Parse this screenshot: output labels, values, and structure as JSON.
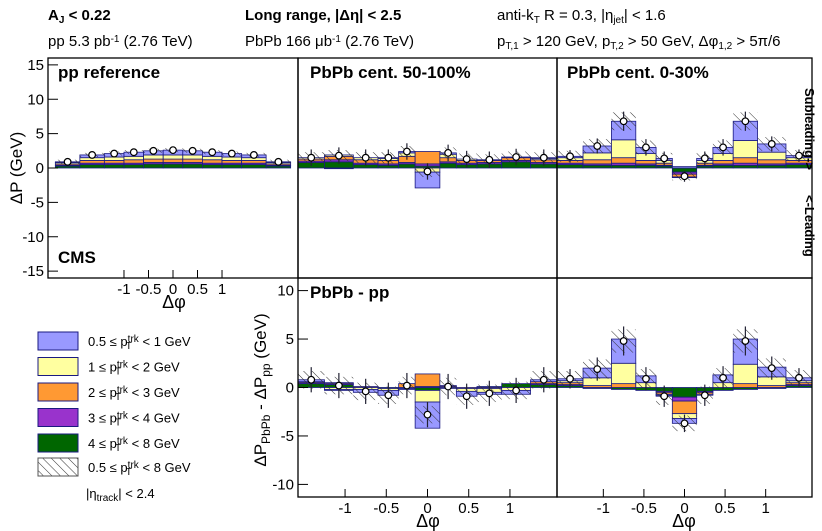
{
  "header": {
    "left1": [
      "A",
      "J",
      " < 0.22"
    ],
    "left2": [
      "pp 5.3 pb",
      "-1",
      " (2.76 TeV)"
    ],
    "mid1": [
      "Long range, |Δη| < 2.5"
    ],
    "mid2": [
      "PbPb 166 μb",
      "-1",
      " (2.76 TeV)"
    ],
    "right1": [
      "anti-k",
      "T",
      " R = 0.3, |η",
      "jet",
      "| < 1.6"
    ],
    "right2": [
      "p",
      "T,1",
      " > 120 GeV, p",
      "T,2",
      " > 50 GeV, Δφ",
      "1,2",
      " > 5π/6"
    ]
  },
  "labels": {
    "cms": "CMS",
    "subleading": "Subleading->",
    "leading": "<-Leading",
    "ylabel_top": "ΔP  (GeV)",
    "ylabel_bottom": [
      "ΔP",
      "PbPb",
      " - ΔP",
      "pp",
      "  (GeV)"
    ],
    "xlabel": "Δφ",
    "syst": [
      "0.5 ≤ p",
      "trk",
      "T",
      " < 8 GeV"
    ],
    "eta_track": [
      "|η",
      "track",
      "| < 2.4"
    ]
  },
  "chart_data": [
    {
      "type": "histogram",
      "stacked": true,
      "title": "pp reference",
      "bins": [
        -2.4,
        -1.9,
        -1.4,
        -1.0,
        -0.6,
        -0.2,
        0.2,
        0.6,
        1.0,
        1.4,
        1.9,
        2.4
      ],
      "xlim": [
        -2.55,
        2.55
      ],
      "ylim": [
        -16,
        16
      ],
      "xticks": [
        -1,
        -0.5,
        0,
        0.5,
        1
      ],
      "yticks": [
        -15,
        -10,
        -5,
        0,
        5,
        10,
        15
      ],
      "series": [
        {
          "name": [
            "0.5 ≤ p",
            "trk",
            "T",
            " < 1 GeV"
          ],
          "color": "#9999ff",
          "values": [
            0.1,
            0.4,
            0.5,
            0.6,
            0.6,
            0.7,
            0.6,
            0.6,
            0.5,
            0.4,
            0.1
          ]
        },
        {
          "name": [
            "1 ≤ p",
            "trk",
            "T",
            " < 2 GeV"
          ],
          "color": "#ffffa0",
          "values": [
            0.2,
            0.4,
            0.5,
            0.5,
            0.6,
            0.6,
            0.6,
            0.5,
            0.5,
            0.4,
            0.2
          ]
        },
        {
          "name": [
            "2 ≤ p",
            "trk",
            "T",
            " < 3 GeV"
          ],
          "color": "#ff9933",
          "values": [
            0.2,
            0.4,
            0.4,
            0.5,
            0.5,
            0.5,
            0.5,
            0.5,
            0.4,
            0.4,
            0.2
          ]
        },
        {
          "name": [
            "3 ≤ p",
            "trk",
            "T",
            " < 4 GeV"
          ],
          "color": "#9933cc",
          "values": [
            0.1,
            0.2,
            0.2,
            0.2,
            0.2,
            0.2,
            0.2,
            0.2,
            0.2,
            0.2,
            0.1
          ]
        },
        {
          "name": [
            "4 ≤ p",
            "trk",
            "T",
            " < 8 GeV"
          ],
          "color": "#006600",
          "values": [
            0.3,
            0.5,
            0.5,
            0.5,
            0.6,
            0.6,
            0.6,
            0.5,
            0.5,
            0.5,
            0.3
          ]
        }
      ],
      "totals": [
        0.9,
        1.9,
        2.1,
        2.3,
        2.5,
        2.6,
        2.5,
        2.3,
        2.1,
        1.9,
        0.9
      ],
      "total_errors": [
        0.3,
        0.3,
        0.3,
        0.3,
        0.3,
        0.3,
        0.3,
        0.3,
        0.3,
        0.3,
        0.3
      ],
      "total_syst": [
        0.3,
        0.3,
        0.3,
        0.3,
        0.3,
        0.3,
        0.3,
        0.3,
        0.3,
        0.3,
        0.3
      ]
    },
    {
      "type": "histogram",
      "stacked": true,
      "title": "PbPb cent. 50-100%",
      "bins": [
        -1.5708,
        -1.25,
        -0.9,
        -0.6,
        -0.35,
        -0.15,
        0.15,
        0.35,
        0.6,
        0.9,
        1.25,
        1.5708
      ],
      "xlim": [
        -1.5708,
        1.5708
      ],
      "ylim": [
        -16,
        16
      ],
      "series": [
        {
          "color": "#9999ff",
          "values": [
            0.0,
            -0.1,
            0.0,
            0.1,
            0.2,
            -2.3,
            0.2,
            0.0,
            0.0,
            0.0,
            0.1
          ]
        },
        {
          "color": "#ffffa0",
          "values": [
            0.2,
            0.2,
            0.3,
            0.3,
            0.5,
            -0.6,
            0.5,
            0.2,
            0.1,
            0.1,
            0.2
          ]
        },
        {
          "color": "#ff9933",
          "values": [
            0.3,
            0.5,
            0.5,
            0.5,
            0.9,
            1.8,
            0.6,
            0.4,
            0.3,
            0.4,
            0.4
          ]
        },
        {
          "color": "#9933cc",
          "values": [
            0.2,
            0.3,
            0.2,
            0.2,
            0.2,
            0.3,
            0.2,
            0.2,
            0.2,
            0.2,
            0.2
          ]
        },
        {
          "color": "#006600",
          "values": [
            0.8,
            0.9,
            0.5,
            0.4,
            0.6,
            0.3,
            0.7,
            0.5,
            0.6,
            0.9,
            0.6
          ]
        }
      ],
      "totals": [
        1.5,
        1.8,
        1.5,
        1.5,
        2.4,
        -0.5,
        2.2,
        1.3,
        1.2,
        1.6,
        1.5
      ],
      "total_errors": [
        1.2,
        1.2,
        1.2,
        1.2,
        1.2,
        1.2,
        1.2,
        1.2,
        1.2,
        1.2,
        1.2
      ],
      "total_syst": [
        0.8,
        0.8,
        0.8,
        0.8,
        0.8,
        0.8,
        0.8,
        0.8,
        0.8,
        0.8,
        0.8
      ]
    },
    {
      "type": "histogram",
      "stacked": true,
      "title": "PbPb cent. 0-30%",
      "bins": [
        -1.5708,
        -1.25,
        -0.9,
        -0.6,
        -0.35,
        -0.15,
        0.15,
        0.35,
        0.6,
        0.9,
        1.25,
        1.5708
      ],
      "xlim": [
        -1.5708,
        1.5708
      ],
      "ylim": [
        -16,
        16
      ],
      "series": [
        {
          "color": "#9999ff",
          "values": [
            0.2,
            1.0,
            2.7,
            0.9,
            0.3,
            0.2,
            0.3,
            0.9,
            2.8,
            1.2,
            0.3
          ]
        },
        {
          "color": "#ffffa0",
          "values": [
            0.4,
            1.0,
            2.6,
            1.0,
            0.4,
            -0.1,
            0.4,
            1.0,
            2.5,
            1.1,
            0.4
          ]
        },
        {
          "color": "#ff9933",
          "values": [
            0.4,
            0.6,
            0.8,
            0.5,
            0.3,
            -0.4,
            0.3,
            0.5,
            0.8,
            0.6,
            0.4
          ]
        },
        {
          "color": "#9933cc",
          "values": [
            0.2,
            0.2,
            0.3,
            0.2,
            0.1,
            -0.3,
            0.1,
            0.2,
            0.3,
            0.2,
            0.2
          ]
        },
        {
          "color": "#006600",
          "values": [
            0.5,
            0.4,
            0.4,
            0.4,
            0.3,
            -0.6,
            0.3,
            0.4,
            0.4,
            0.4,
            0.5
          ]
        }
      ],
      "totals": [
        1.7,
        3.2,
        6.8,
        3.0,
        1.4,
        -1.2,
        1.4,
        3.0,
        6.8,
        3.5,
        1.8
      ],
      "total_errors": [
        0.9,
        1.1,
        1.4,
        1.2,
        1.0,
        0.8,
        1.0,
        1.2,
        1.4,
        1.1,
        0.9
      ],
      "total_syst": [
        0.8,
        1.0,
        1.3,
        1.0,
        0.8,
        0.6,
        0.8,
        1.0,
        1.3,
        1.0,
        0.8
      ]
    },
    {
      "type": "histogram",
      "stacked": true,
      "title": "PbPb - pp",
      "bins": [
        -1.5708,
        -1.25,
        -0.9,
        -0.6,
        -0.35,
        -0.15,
        0.15,
        0.35,
        0.6,
        0.9,
        1.25,
        1.5708
      ],
      "xlim": [
        -1.5708,
        1.5708
      ],
      "ylim": [
        -11.3,
        11.3
      ],
      "xticks": [
        -1,
        -0.5,
        0,
        0.5,
        1
      ],
      "yticks": [
        -10,
        -5,
        0,
        5,
        10
      ],
      "series": [
        {
          "color": "#9999ff",
          "values": [
            0.2,
            -0.1,
            -0.3,
            -0.5,
            -0.1,
            -2.7,
            0.0,
            -0.5,
            -0.2,
            -0.4,
            0.2
          ]
        },
        {
          "color": "#ffffa0",
          "values": [
            0.0,
            -0.2,
            -0.2,
            -0.2,
            -0.1,
            -1.2,
            -0.1,
            -0.3,
            -0.4,
            -0.3,
            0.0
          ]
        },
        {
          "color": "#ff9933",
          "values": [
            0.1,
            0.1,
            0.1,
            0.0,
            0.4,
            1.3,
            0.1,
            -0.1,
            -0.1,
            0.0,
            0.2
          ]
        },
        {
          "color": "#9933cc",
          "values": [
            0.1,
            0.1,
            0.0,
            0.0,
            0.0,
            0.1,
            0.0,
            0.0,
            0.0,
            0.0,
            0.1
          ]
        },
        {
          "color": "#006600",
          "values": [
            0.4,
            0.3,
            0.0,
            -0.1,
            0.0,
            -0.3,
            0.1,
            0.0,
            0.1,
            0.4,
            0.3
          ]
        }
      ],
      "totals": [
        0.8,
        0.2,
        -0.4,
        -0.8,
        0.2,
        -2.8,
        0.1,
        -0.9,
        -0.6,
        -0.3,
        0.8
      ],
      "total_errors": [
        1.3,
        1.3,
        1.3,
        1.3,
        1.3,
        1.3,
        1.3,
        1.3,
        1.3,
        1.3,
        1.3
      ],
      "total_syst": [
        0.9,
        0.9,
        0.9,
        0.9,
        0.9,
        0.9,
        0.9,
        0.9,
        0.9,
        0.9,
        0.9
      ]
    },
    {
      "type": "histogram",
      "stacked": true,
      "bins": [
        -1.5708,
        -1.25,
        -0.9,
        -0.6,
        -0.35,
        -0.15,
        0.15,
        0.35,
        0.6,
        0.9,
        1.25,
        1.5708
      ],
      "xlim": [
        -1.5708,
        1.5708
      ],
      "ylim": [
        -11.3,
        11.3
      ],
      "xticks": [
        -1,
        -0.5,
        0,
        0.5,
        1
      ],
      "series": [
        {
          "color": "#9999ff",
          "values": [
            0.2,
            1.0,
            2.5,
            0.7,
            -0.1,
            -0.5,
            0.0,
            0.8,
            2.6,
            1.0,
            0.3
          ]
        },
        {
          "color": "#ffffa0",
          "values": [
            0.2,
            0.8,
            2.1,
            0.5,
            -0.1,
            -0.5,
            -0.1,
            0.5,
            2.0,
            0.9,
            0.2
          ]
        },
        {
          "color": "#ff9933",
          "values": [
            0.2,
            0.2,
            0.4,
            0.0,
            -0.2,
            -1.3,
            -0.2,
            0.0,
            0.4,
            0.2,
            0.2
          ]
        },
        {
          "color": "#9933cc",
          "values": [
            0.1,
            0.0,
            0.0,
            0.0,
            -0.1,
            -0.4,
            -0.1,
            0.0,
            0.0,
            0.0,
            0.1
          ]
        },
        {
          "color": "#006600",
          "values": [
            0.2,
            -0.1,
            -0.2,
            -0.3,
            -0.4,
            -1.0,
            -0.4,
            -0.3,
            -0.2,
            -0.1,
            0.2
          ]
        }
      ],
      "totals": [
        0.9,
        1.9,
        4.8,
        0.9,
        -0.9,
        -3.7,
        -0.8,
        1.0,
        4.8,
        2.0,
        1.0
      ],
      "total_errors": [
        1.0,
        1.2,
        1.5,
        1.2,
        1.1,
        0.9,
        1.1,
        1.2,
        1.5,
        1.2,
        1.0
      ],
      "total_syst": [
        0.8,
        1.0,
        1.2,
        1.0,
        0.9,
        0.8,
        0.9,
        1.0,
        1.2,
        1.0,
        0.8
      ]
    }
  ]
}
